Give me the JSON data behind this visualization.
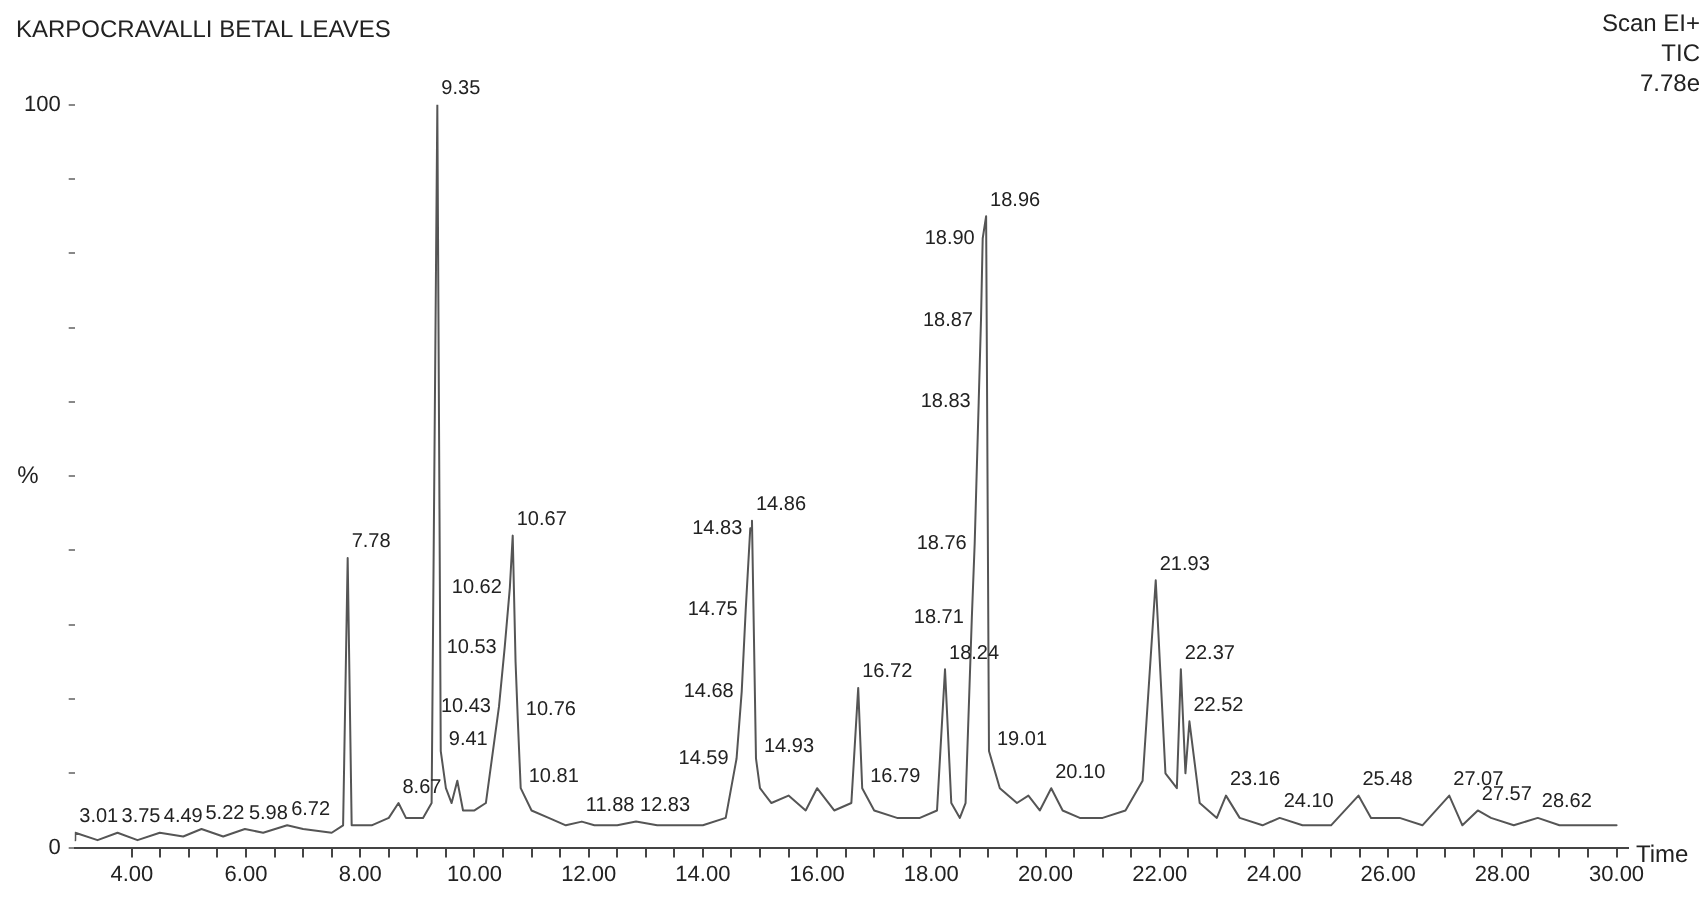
{
  "chart_data": {
    "type": "line",
    "title": "KARPOCRAVALLI BETAL LEAVES",
    "xlabel": "Time",
    "ylabel": "%",
    "color": "#555555",
    "marker": "none",
    "x": [
      3.0,
      3.01,
      3.4,
      3.75,
      4.1,
      4.49,
      4.9,
      5.22,
      5.6,
      5.98,
      6.3,
      6.72,
      7.0,
      7.5,
      7.7,
      7.78,
      7.85,
      8.2,
      8.5,
      8.67,
      8.8,
      9.1,
      9.25,
      9.35,
      9.41,
      9.5,
      9.6,
      9.7,
      9.8,
      10.0,
      10.2,
      10.43,
      10.53,
      10.62,
      10.67,
      10.72,
      10.76,
      10.81,
      11.0,
      11.3,
      11.6,
      11.88,
      12.1,
      12.5,
      12.83,
      13.2,
      13.6,
      14.0,
      14.4,
      14.59,
      14.68,
      14.75,
      14.83,
      14.86,
      14.93,
      15.0,
      15.2,
      15.5,
      15.8,
      16.0,
      16.3,
      16.6,
      16.72,
      16.79,
      17.0,
      17.4,
      17.8,
      18.1,
      18.24,
      18.35,
      18.5,
      18.6,
      18.71,
      18.76,
      18.83,
      18.87,
      18.9,
      18.96,
      19.01,
      19.2,
      19.5,
      19.7,
      19.9,
      20.1,
      20.3,
      20.6,
      21.0,
      21.4,
      21.7,
      21.93,
      22.1,
      22.3,
      22.37,
      22.45,
      22.52,
      22.7,
      23.0,
      23.16,
      23.4,
      23.8,
      24.1,
      24.5,
      25.0,
      25.48,
      25.7,
      26.2,
      26.6,
      27.07,
      27.3,
      27.57,
      27.8,
      28.2,
      28.62,
      29.0,
      29.5,
      30.0
    ],
    "values": [
      1,
      2,
      1,
      2,
      1,
      2,
      1.5,
      2.5,
      1.5,
      2.5,
      2,
      3,
      2.5,
      2,
      3,
      39,
      3,
      3,
      4,
      6,
      4,
      4,
      6,
      100,
      13,
      8,
      6,
      9,
      5,
      5,
      6,
      19,
      27,
      35,
      42,
      25,
      17,
      8,
      5,
      4,
      3,
      3.5,
      3,
      3,
      3.5,
      3,
      3,
      3,
      4,
      12,
      21,
      32,
      43,
      44,
      12,
      8,
      6,
      7,
      5,
      8,
      5,
      6,
      21.5,
      8,
      5,
      4,
      4,
      5,
      24,
      6,
      4,
      6,
      31,
      41,
      60,
      71,
      82,
      85,
      13,
      8,
      6,
      7,
      5,
      8,
      5,
      4,
      4,
      5,
      9,
      36,
      10,
      8,
      24,
      10,
      17,
      6,
      4,
      7,
      4,
      3,
      4,
      3,
      3,
      7,
      4,
      4,
      3,
      7,
      3,
      5,
      4,
      3,
      4,
      3,
      3,
      3
    ],
    "xlim": [
      3,
      30.2
    ],
    "ylim": [
      0,
      100
    ],
    "xticks": [
      {
        "value": 4,
        "label": "4.00"
      },
      {
        "value": 4.5,
        "label": null
      },
      {
        "value": 5,
        "label": null
      },
      {
        "value": 5.5,
        "label": null
      },
      {
        "value": 6,
        "label": "6.00"
      },
      {
        "value": 6.5,
        "label": null
      },
      {
        "value": 7,
        "label": null
      },
      {
        "value": 7.5,
        "label": null
      },
      {
        "value": 8,
        "label": "8.00"
      },
      {
        "value": 8.5,
        "label": null
      },
      {
        "value": 9,
        "label": null
      },
      {
        "value": 9.5,
        "label": null
      },
      {
        "value": 10,
        "label": "10.00"
      },
      {
        "value": 10.5,
        "label": null
      },
      {
        "value": 11,
        "label": null
      },
      {
        "value": 11.5,
        "label": null
      },
      {
        "value": 12,
        "label": "12.00"
      },
      {
        "value": 12.5,
        "label": null
      },
      {
        "value": 13,
        "label": null
      },
      {
        "value": 13.5,
        "label": null
      },
      {
        "value": 14,
        "label": "14.00"
      },
      {
        "value": 14.5,
        "label": null
      },
      {
        "value": 15,
        "label": null
      },
      {
        "value": 15.5,
        "label": null
      },
      {
        "value": 16,
        "label": "16.00"
      },
      {
        "value": 16.5,
        "label": null
      },
      {
        "value": 17,
        "label": null
      },
      {
        "value": 17.5,
        "label": null
      },
      {
        "value": 18,
        "label": "18.00"
      },
      {
        "value": 18.5,
        "label": null
      },
      {
        "value": 19,
        "label": null
      },
      {
        "value": 19.5,
        "label": null
      },
      {
        "value": 20,
        "label": "20.00"
      },
      {
        "value": 20.5,
        "label": null
      },
      {
        "value": 21,
        "label": null
      },
      {
        "value": 21.5,
        "label": null
      },
      {
        "value": 22,
        "label": "22.00"
      },
      {
        "value": 22.5,
        "label": null
      },
      {
        "value": 23,
        "label": null
      },
      {
        "value": 23.5,
        "label": null
      },
      {
        "value": 24,
        "label": "24.00"
      },
      {
        "value": 24.5,
        "label": null
      },
      {
        "value": 25,
        "label": null
      },
      {
        "value": 25.5,
        "label": null
      },
      {
        "value": 26,
        "label": "26.00"
      },
      {
        "value": 26.5,
        "label": null
      },
      {
        "value": 27,
        "label": null
      },
      {
        "value": 27.5,
        "label": null
      },
      {
        "value": 28,
        "label": "28.00"
      },
      {
        "value": 28.5,
        "label": null
      },
      {
        "value": 29,
        "label": null
      },
      {
        "value": 29.5,
        "label": null
      },
      {
        "value": 30,
        "label": "30.00"
      }
    ],
    "yticks": [
      0,
      {
        "value": 10,
        "label": null
      },
      {
        "value": 20,
        "label": null
      },
      {
        "value": 30,
        "label": null
      },
      {
        "value": 40,
        "label": null
      },
      {
        "value": 50,
        "label": null
      },
      {
        "value": 60,
        "label": null
      },
      {
        "value": 70,
        "label": null
      },
      {
        "value": 80,
        "label": null
      },
      {
        "value": 90,
        "label": null
      },
      100
    ],
    "annotations": [
      "Scan EI+",
      "TIC",
      "7.78e",
      {
        "text": "3.01",
        "x": 3.01,
        "y": 2
      },
      {
        "text": "3.75",
        "x": 3.75,
        "y": 2
      },
      {
        "text": "4.49",
        "x": 4.49,
        "y": 2
      },
      {
        "text": "5.22",
        "x": 5.22,
        "y": 2.5
      },
      {
        "text": "5.98",
        "x": 5.98,
        "y": 2.5
      },
      {
        "text": "6.72",
        "x": 6.72,
        "y": 3
      },
      {
        "text": "7.78",
        "x": 7.78,
        "y": 39
      },
      {
        "text": "8.67",
        "x": 8.67,
        "y": 6
      },
      {
        "text": "9.35",
        "x": 9.35,
        "y": 100
      },
      {
        "text": "9.41",
        "x": 9.41,
        "y": 13
      },
      {
        "text": "10.43",
        "x": 10.43,
        "y": 19
      },
      {
        "text": "10.53",
        "x": 10.53,
        "y": 27
      },
      {
        "text": "10.62",
        "x": 10.62,
        "y": 35
      },
      {
        "text": "10.67",
        "x": 10.67,
        "y": 42
      },
      {
        "text": "10.76",
        "x": 10.76,
        "y": 17
      },
      {
        "text": "10.81",
        "x": 10.81,
        "y": 8
      },
      {
        "text": "11.88",
        "x": 11.88,
        "y": 3.5
      },
      {
        "text": "12.83",
        "x": 12.83,
        "y": 3.5
      },
      {
        "text": "14.59",
        "x": 14.59,
        "y": 12
      },
      {
        "text": "14.68",
        "x": 14.68,
        "y": 21
      },
      {
        "text": "14.75",
        "x": 14.75,
        "y": 32
      },
      {
        "text": "14.83",
        "x": 14.83,
        "y": 43
      },
      {
        "text": "14.86",
        "x": 14.86,
        "y": 44
      },
      {
        "text": "14.93",
        "x": 14.93,
        "y": 12
      },
      {
        "text": "16.72",
        "x": 16.72,
        "y": 21.5
      },
      {
        "text": "16.79",
        "x": 16.79,
        "y": 8
      },
      {
        "text": "18.24",
        "x": 18.24,
        "y": 24
      },
      {
        "text": "18.71",
        "x": 18.71,
        "y": 31
      },
      {
        "text": "18.76",
        "x": 18.76,
        "y": 41
      },
      {
        "text": "18.83",
        "x": 18.83,
        "y": 60
      },
      {
        "text": "18.87",
        "x": 18.87,
        "y": 71
      },
      {
        "text": "18.90",
        "x": 18.9,
        "y": 82
      },
      {
        "text": "18.96",
        "x": 18.96,
        "y": 85
      },
      {
        "text": "19.01",
        "x": 19.01,
        "y": 13
      },
      {
        "text": "20.10",
        "x": 20.1,
        "y": 8
      },
      {
        "text": "21.93",
        "x": 21.93,
        "y": 36
      },
      {
        "text": "22.37",
        "x": 22.37,
        "y": 24
      },
      {
        "text": "22.52",
        "x": 22.52,
        "y": 17
      },
      {
        "text": "23.16",
        "x": 23.16,
        "y": 7
      },
      {
        "text": "24.10",
        "x": 24.1,
        "y": 4
      },
      {
        "text": "25.48",
        "x": 25.48,
        "y": 7
      },
      {
        "text": "27.07",
        "x": 27.07,
        "y": 7
      },
      {
        "text": "27.57",
        "x": 27.57,
        "y": 5
      },
      {
        "text": "28.62",
        "x": 28.62,
        "y": 4
      }
    ]
  }
}
